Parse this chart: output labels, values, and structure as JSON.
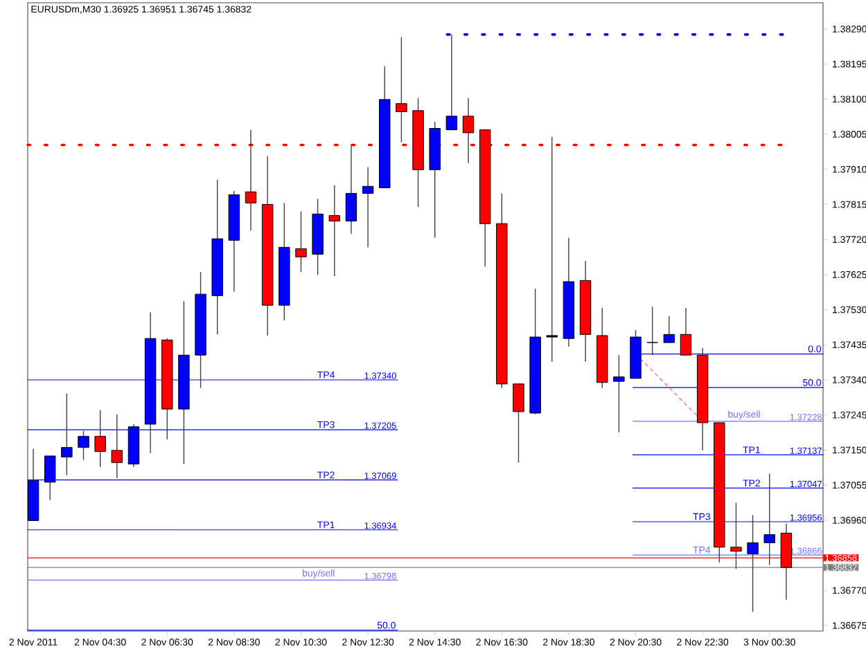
{
  "chart_data": {
    "type": "candlestick",
    "title": "EURUSDm,M30  1.36925 1.36951 1.36745 1.36832",
    "x": [
      "2011-11-02T02:30",
      "2011-11-02T03:00",
      "2011-11-02T03:30",
      "2011-11-02T04:00",
      "2011-11-02T04:30",
      "2011-11-02T05:00",
      "2011-11-02T05:30",
      "2011-11-02T06:00",
      "2011-11-02T06:30",
      "2011-11-02T07:00",
      "2011-11-02T07:30",
      "2011-11-02T08:00",
      "2011-11-02T08:30",
      "2011-11-02T09:00",
      "2011-11-02T09:30",
      "2011-11-02T10:00",
      "2011-11-02T10:30",
      "2011-11-02T11:00",
      "2011-11-02T11:30",
      "2011-11-02T12:00",
      "2011-11-02T12:30",
      "2011-11-02T13:00",
      "2011-11-02T13:30",
      "2011-11-02T14:00",
      "2011-11-02T14:30",
      "2011-11-02T15:00",
      "2011-11-02T15:30",
      "2011-11-02T16:00",
      "2011-11-02T16:30",
      "2011-11-02T17:00",
      "2011-11-02T17:30",
      "2011-11-02T18:00",
      "2011-11-02T18:30",
      "2011-11-02T19:00",
      "2011-11-02T19:30",
      "2011-11-02T20:00",
      "2011-11-02T20:30",
      "2011-11-02T21:00",
      "2011-11-02T21:30",
      "2011-11-02T22:00",
      "2011-11-02T22:30",
      "2011-11-02T23:00",
      "2011-11-02T23:30",
      "2011-11-03T00:00",
      "2011-11-03T00:30",
      "2011-11-03T01:00"
    ],
    "ohlc": [
      [
        1.36959,
        1.37153,
        1.36959,
        1.37067
      ],
      [
        1.37063,
        1.37134,
        1.37015,
        1.37134
      ],
      [
        1.37131,
        1.37303,
        1.37082,
        1.37157
      ],
      [
        1.37157,
        1.37202,
        1.37123,
        1.37187
      ],
      [
        1.37187,
        1.37258,
        1.37104,
        1.37146
      ],
      [
        1.37149,
        1.37247,
        1.37074,
        1.37116
      ],
      [
        1.37112,
        1.3722,
        1.37104,
        1.37213
      ],
      [
        1.3722,
        1.37523,
        1.37142,
        1.37452
      ],
      [
        1.37448,
        1.37452,
        1.37179,
        1.37261
      ],
      [
        1.37261,
        1.37553,
        1.37112,
        1.37407
      ],
      [
        1.37407,
        1.37632,
        1.37318,
        1.37572
      ],
      [
        1.37568,
        1.37882,
        1.37463,
        1.37722
      ],
      [
        1.37718,
        1.37852,
        1.37579,
        1.37841
      ],
      [
        1.37849,
        1.38017,
        1.37744,
        1.37819
      ],
      [
        1.37815,
        1.37946,
        1.3746,
        1.37542
      ],
      [
        1.37542,
        1.37819,
        1.37501,
        1.37699
      ],
      [
        1.37695,
        1.37796,
        1.37632,
        1.37673
      ],
      [
        1.3768,
        1.3783,
        1.37624,
        1.37789
      ],
      [
        1.37785,
        1.37867,
        1.37621,
        1.3777
      ],
      [
        1.3777,
        1.37976,
        1.37736,
        1.37845
      ],
      [
        1.37845,
        1.37916,
        1.37699,
        1.37864
      ],
      [
        1.3786,
        1.38189,
        1.3786,
        1.38099
      ],
      [
        1.38088,
        1.38268,
        1.37983,
        1.38066
      ],
      [
        1.38069,
        1.38103,
        1.37808,
        1.37909
      ],
      [
        1.37909,
        1.38039,
        1.37725,
        1.38021
      ],
      [
        1.38017,
        1.38275,
        1.38017,
        1.38054
      ],
      [
        1.38054,
        1.38103,
        1.37927,
        1.38009
      ],
      [
        1.38017,
        1.38017,
        1.37647,
        1.37763
      ],
      [
        1.37763,
        1.37845,
        1.37318,
        1.37329
      ],
      [
        1.37329,
        1.37329,
        1.37116,
        1.37254
      ],
      [
        1.3725,
        1.37587,
        1.37247,
        1.37456
      ],
      [
        1.37456,
        1.37998,
        1.37389,
        1.3746
      ],
      [
        1.37452,
        1.37725,
        1.3743,
        1.37606
      ],
      [
        1.37609,
        1.37662,
        1.37389,
        1.37463
      ],
      [
        1.3746,
        1.37535,
        1.37318,
        1.37333
      ],
      [
        1.37336,
        1.37407,
        1.37198,
        1.37348
      ],
      [
        1.37344,
        1.37475,
        1.37344,
        1.37456
      ],
      [
        1.37441,
        1.37538,
        1.37407,
        1.37441
      ],
      [
        1.37441,
        1.37512,
        1.37441,
        1.37463
      ],
      [
        1.37463,
        1.37535,
        1.37407,
        1.37407
      ],
      [
        1.37407,
        1.37426,
        1.37149,
        1.37224
      ],
      [
        1.37224,
        1.37224,
        1.36846,
        1.36887
      ],
      [
        1.36887,
        1.37007,
        1.36828,
        1.36876
      ],
      [
        1.36869,
        1.36974,
        1.36712,
        1.36899
      ],
      [
        1.36899,
        1.37086,
        1.36839,
        1.36921
      ],
      [
        1.36925,
        1.36951,
        1.36745,
        1.36832
      ]
    ],
    "colors": [
      "#0000ff",
      "#0000ff",
      "#0000ff",
      "#0000ff",
      "#ff0000",
      "#ff0000",
      "#0000ff",
      "#0000ff",
      "#ff0000",
      "#0000ff",
      "#0000ff",
      "#0000ff",
      "#0000ff",
      "#ff0000",
      "#ff0000",
      "#0000ff",
      "#ff0000",
      "#0000ff",
      "#ff0000",
      "#0000ff",
      "#0000ff",
      "#0000ff",
      "#ff0000",
      "#ff0000",
      "#0000ff",
      "#0000ff",
      "#ff0000",
      "#ff0000",
      "#ff0000",
      "#ff0000",
      "#0000ff",
      "#000000",
      "#0000ff",
      "#ff0000",
      "#ff0000",
      "#0000ff",
      "#0000ff",
      "#000000",
      "#0000ff",
      "#ff0000",
      "#ff0000",
      "#ff0000",
      "#ff0000",
      "#0000ff",
      "#0000ff",
      "#ff0000"
    ],
    "xlim": [
      "2011-11-02T02:20",
      "2011-11-03T02:06"
    ],
    "xticks": [
      {
        "value": "2011-11-02T02:30",
        "label": "2 Nov 2011"
      },
      {
        "value": "2011-11-02T04:30",
        "label": "2 Nov 04:30"
      },
      {
        "value": "2011-11-02T06:30",
        "label": "2 Nov 06:30"
      },
      {
        "value": "2011-11-02T08:30",
        "label": "2 Nov 08:30"
      },
      {
        "value": "2011-11-02T10:30",
        "label": "2 Nov 10:30"
      },
      {
        "value": "2011-11-02T12:30",
        "label": "2 Nov 12:30"
      },
      {
        "value": "2011-11-02T14:30",
        "label": "2 Nov 14:30"
      },
      {
        "value": "2011-11-02T16:30",
        "label": "2 Nov 16:30"
      },
      {
        "value": "2011-11-02T18:30",
        "label": "2 Nov 18:30"
      },
      {
        "value": "2011-11-02T20:30",
        "label": "2 Nov 20:30"
      },
      {
        "value": "2011-11-02T22:30",
        "label": "2 Nov 22:30"
      },
      {
        "value": "2011-11-03T00:30",
        "label": "3 Nov 00:30"
      }
    ],
    "ylim": [
      1.3666,
      1.38361
    ],
    "yticks": [
      {
        "value": 1.3829,
        "label": "1.38290"
      },
      {
        "value": 1.38195,
        "label": "1.38195"
      },
      {
        "value": 1.381,
        "label": "1.38100"
      },
      {
        "value": 1.38005,
        "label": "1.38005"
      },
      {
        "value": 1.3791,
        "label": "1.37910"
      },
      {
        "value": 1.37815,
        "label": "1.37815"
      },
      {
        "value": 1.3772,
        "label": "1.37720"
      },
      {
        "value": 1.37625,
        "label": "1.37625"
      },
      {
        "value": 1.3753,
        "label": "1.37530"
      },
      {
        "value": 1.37435,
        "label": "1.37435"
      },
      {
        "value": 1.3734,
        "label": "1.37340"
      },
      {
        "value": 1.37245,
        "label": "1.37245"
      },
      {
        "value": 1.3715,
        "label": "1.37150"
      },
      {
        "value": 1.37055,
        "label": "1.37055"
      },
      {
        "value": 1.3696,
        "label": "1.36960"
      },
      {
        "value": 1.3677,
        "label": "1.36770"
      },
      {
        "value": 1.36675,
        "label": "1.36675"
      }
    ],
    "series": [
      {
        "type": "line",
        "name": "TP4",
        "color": "#0000ff",
        "x": [
          "2011-11-02T02:20",
          "2011-11-02T13:23"
        ],
        "values": [
          1.3734,
          1.3734
        ],
        "value_labels": [
          null,
          "1.37340"
        ]
      },
      {
        "type": "line",
        "name": "TP3",
        "color": "#0000ff",
        "x": [
          "2011-11-02T02:20",
          "2011-11-02T13:23"
        ],
        "values": [
          1.37205,
          1.37205
        ],
        "value_labels": [
          null,
          "1.37205"
        ]
      },
      {
        "type": "line",
        "name": "TP2",
        "color": "#0000ff",
        "x": [
          "2011-11-02T02:20",
          "2011-11-02T13:23"
        ],
        "values": [
          1.37069,
          1.37069
        ],
        "value_labels": [
          null,
          "1.37069"
        ]
      },
      {
        "type": "line",
        "name": "TP1",
        "color": "#0000ff",
        "x": [
          "2011-11-02T02:20",
          "2011-11-02T13:23"
        ],
        "values": [
          1.36934,
          1.36934
        ],
        "value_labels": [
          null,
          "1.36934"
        ]
      },
      {
        "type": "line",
        "name": "buy/sell",
        "color": "#7070ff",
        "x": [
          "2011-11-02T02:20",
          "2011-11-02T13:23"
        ],
        "values": [
          1.36798,
          1.36798
        ],
        "value_labels": [
          null,
          "1.36798"
        ]
      },
      {
        "type": "line",
        "name": "50.0",
        "color": "#0000ff",
        "x": [
          "2011-11-02T02:20",
          "2011-11-02T13:23"
        ],
        "values": [
          1.36662,
          1.36662
        ]
      },
      {
        "type": "line",
        "name": "0.0",
        "color": "#0000ff",
        "x": [
          "2011-11-02T20:25",
          "2011-11-03T02:06"
        ],
        "values": [
          1.3741,
          1.3741
        ]
      },
      {
        "type": "line",
        "name": "50.0",
        "color": "#0000ff",
        "x": [
          "2011-11-02T20:25",
          "2011-11-03T02:06"
        ],
        "values": [
          1.37319,
          1.37319
        ]
      },
      {
        "type": "line",
        "name": "buy/sell",
        "color": "#7070ff",
        "x": [
          "2011-11-02T20:25",
          "2011-11-03T02:06"
        ],
        "values": [
          1.37228,
          1.37228
        ],
        "value_labels": [
          null,
          "1.37228"
        ]
      },
      {
        "type": "line",
        "name": "TP1",
        "color": "#0000ff",
        "x": [
          "2011-11-02T20:25",
          "2011-11-03T02:06"
        ],
        "values": [
          1.37137,
          1.37137
        ],
        "value_labels": [
          null,
          "1.37137"
        ]
      },
      {
        "type": "line",
        "name": "TP2",
        "color": "#0000ff",
        "x": [
          "2011-11-02T20:25",
          "2011-11-03T02:06"
        ],
        "values": [
          1.37047,
          1.37047
        ],
        "value_labels": [
          null,
          "1.37047"
        ]
      },
      {
        "type": "line",
        "name": "TP3",
        "color": "#0000ff",
        "x": [
          "2011-11-02T20:25",
          "2011-11-03T02:06"
        ],
        "values": [
          1.36956,
          1.36956
        ],
        "value_labels": [
          null,
          "1.36956"
        ]
      },
      {
        "type": "line",
        "name": "TP4",
        "color": "#7070ff",
        "x": [
          "2011-11-02T20:25",
          "2011-11-03T02:06"
        ],
        "values": [
          1.36866,
          1.36866
        ],
        "value_labels": [
          null,
          "1.36866"
        ]
      },
      {
        "type": "line",
        "color": "#ff0000",
        "line_style": "dotted",
        "x": [
          "2011-11-02T02:20",
          "2011-11-03T00:56"
        ],
        "values": [
          1.37976,
          1.37976
        ]
      },
      {
        "type": "line",
        "color": "#0000ff",
        "line_style": "dotted",
        "x": [
          "2011-11-02T14:52",
          "2011-11-03T00:56"
        ],
        "values": [
          1.38275,
          1.38275
        ]
      },
      {
        "type": "line",
        "color": "#ff6060",
        "line_style": "dashed",
        "x": [
          "2011-11-02T20:30",
          "2011-11-02T22:30"
        ],
        "values": [
          1.3741,
          1.37228
        ]
      }
    ],
    "ref_lines": [
      {
        "axis": "y",
        "value": 1.36858,
        "label": "1.36858",
        "color": "#ff0000"
      },
      {
        "axis": "y",
        "value": 1.36832,
        "label": "1.36832",
        "color": "#808080"
      }
    ]
  }
}
